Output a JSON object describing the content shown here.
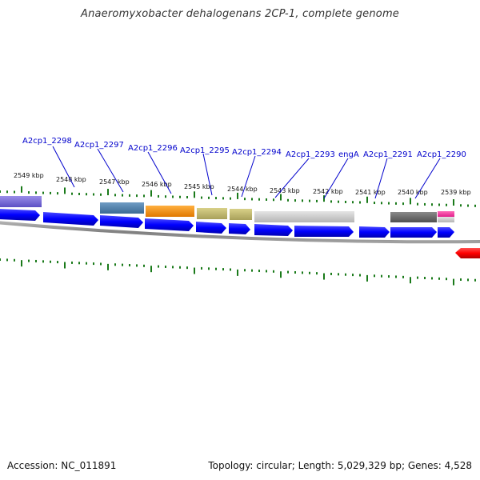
{
  "title": "Anaeromyxobacter dehalogenans 2CP-1, complete genome",
  "footer": {
    "accession_label": "Accession:",
    "accession": "NC_011891",
    "topology_label": "Topology:",
    "topology": "circular",
    "length_label": "Length:",
    "length": "5,029,329 bp",
    "genes_label": "Genes:",
    "genes": "4,528"
  },
  "scale_ticks": [
    "2549 kbp",
    "2548 kbp",
    "2547 kbp",
    "2546 kbp",
    "2545 kbp",
    "2544 kbp",
    "2543 kbp",
    "2542 kbp",
    "2541 kbp",
    "2540 kbp",
    "2539 kbp"
  ],
  "genes": [
    {
      "label": "A2cp1_2298"
    },
    {
      "label": "A2cp1_2297"
    },
    {
      "label": "A2cp1_2296"
    },
    {
      "label": "A2cp1_2295"
    },
    {
      "label": "A2cp1_2294"
    },
    {
      "label": "A2cp1_2293"
    },
    {
      "label": "engA"
    },
    {
      "label": "A2cp1_2291"
    },
    {
      "label": "A2cp1_2290"
    }
  ],
  "colors": {
    "cds_forward": "#0000ff",
    "cds_reverse": "#ff0000",
    "tick": "#1a7a1a",
    "backbone": "#888888",
    "label": "#0000cc"
  }
}
